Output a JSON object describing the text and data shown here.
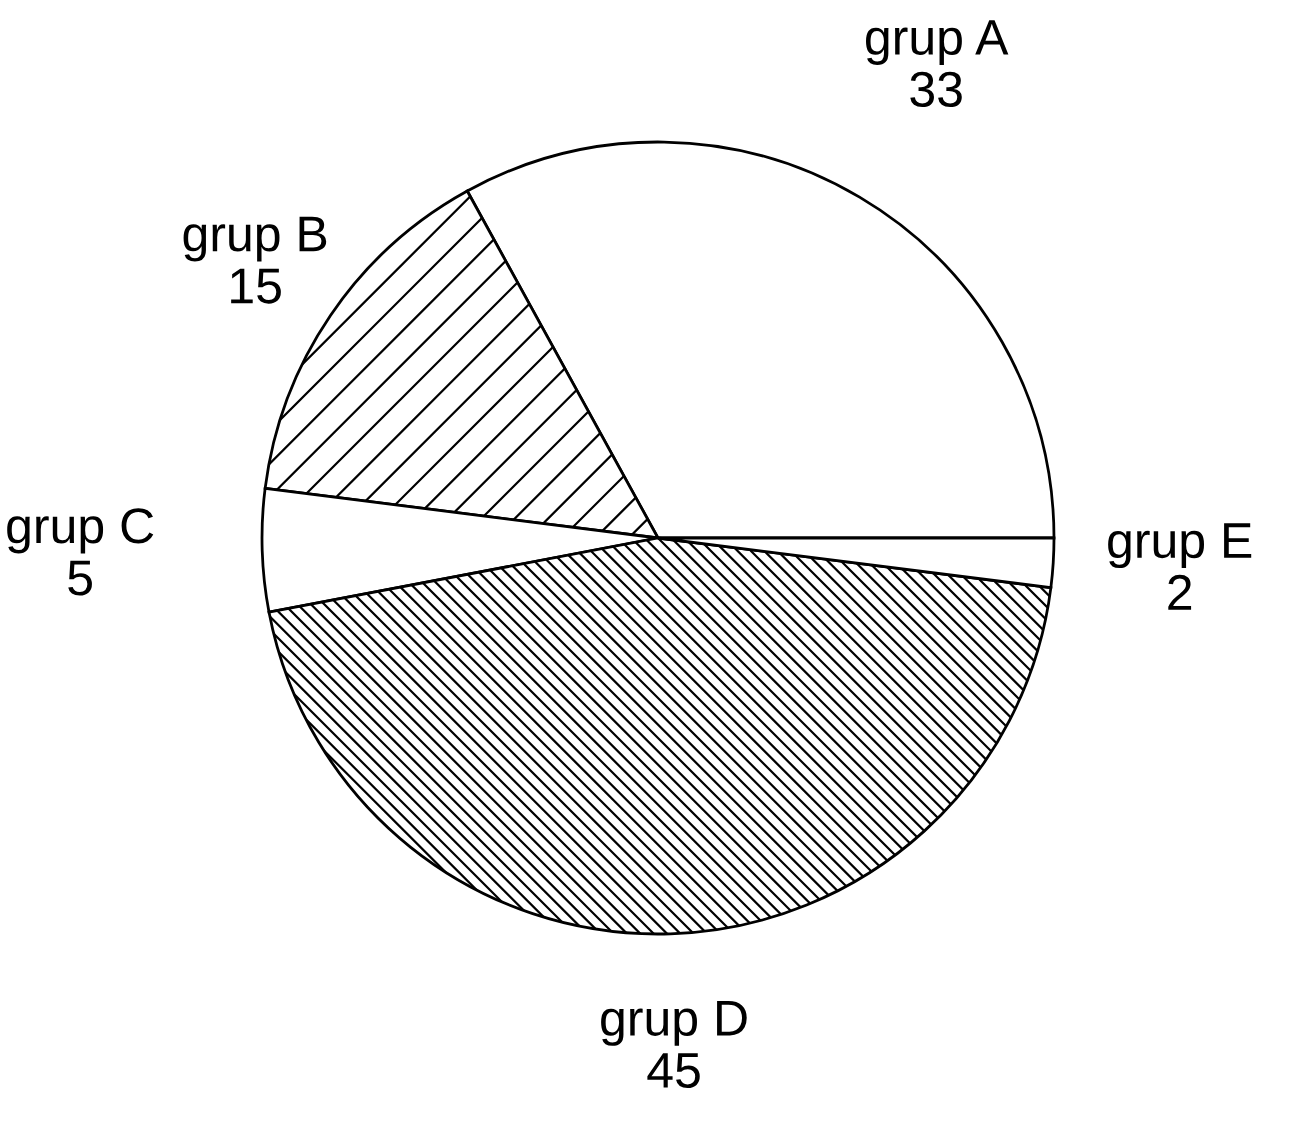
{
  "chart_data": {
    "type": "pie",
    "categories": [
      "grup A",
      "grup B",
      "grup C",
      "grup D",
      "grup E"
    ],
    "values": [
      33,
      15,
      5,
      45,
      2
    ],
    "colors": [
      "#ffffff",
      "#ffffff",
      "#ffffff",
      "#ffffff",
      "#ffffff"
    ],
    "data_labels": true
  }
}
